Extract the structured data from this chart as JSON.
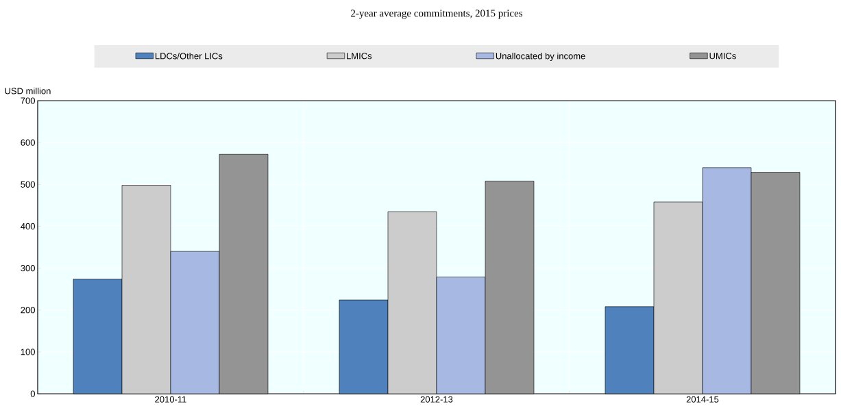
{
  "chart_data": {
    "type": "bar",
    "title": "2-year average commitments, 2015 prices",
    "ylabel": "USD million",
    "categories": [
      "2010-11",
      "2012-13",
      "2014-15"
    ],
    "series": [
      {
        "name": "LDCs/Other LICs",
        "color": "#4f81bd",
        "values": [
          274,
          224,
          208
        ]
      },
      {
        "name": "LMICs",
        "color": "#cccccc",
        "values": [
          498,
          435,
          458
        ]
      },
      {
        "name": "Unallocated by income",
        "color": "#a7b9e3",
        "values": [
          340,
          279,
          540
        ]
      },
      {
        "name": "UMICs",
        "color": "#949494",
        "values": [
          572,
          508,
          529
        ]
      }
    ],
    "ylim": [
      0,
      700
    ],
    "yticks": [
      0,
      100,
      200,
      300,
      400,
      500,
      600,
      700
    ],
    "grid": "y",
    "legend": "top"
  }
}
